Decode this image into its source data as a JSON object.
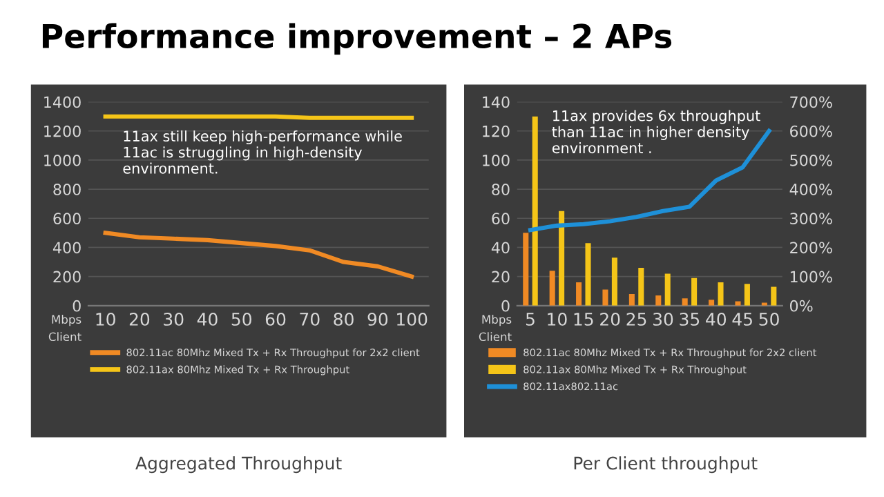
{
  "chart_data": [
    {
      "type": "line",
      "title": "Performance improvement – 2 APs",
      "xlabel": "Client",
      "ylabel": "Mbps",
      "categories": [
        "10",
        "20",
        "30",
        "40",
        "50",
        "60",
        "70",
        "80",
        "90",
        "100"
      ],
      "series": [
        {
          "name": "802.11ac 80Mhz Mixed Tx + Rx Throughput for 2x2 client",
          "color": "#f08a24",
          "values": [
            500,
            470,
            460,
            450,
            430,
            410,
            380,
            300,
            270,
            200
          ]
        },
        {
          "name": "802.11ax 80Mhz Mixed Tx + Rx Throughput",
          "color": "#f5c518",
          "values": [
            1300,
            1300,
            1300,
            1300,
            1300,
            1300,
            1290,
            1290,
            1290,
            1290
          ]
        }
      ],
      "ylim": [
        0,
        1400
      ],
      "yticks": [
        0,
        200,
        400,
        600,
        800,
        1000,
        1200,
        1400
      ],
      "grid": "y",
      "legend": "bottom",
      "annotations": [
        "11ax still keep high-performance while 11ac is struggling in high-density environment.",
        "Aggregated Throughput"
      ]
    },
    {
      "type": "bar",
      "xlabel": "Client",
      "ylabel": "Mbps",
      "categories": [
        "5",
        "10",
        "15",
        "20",
        "25",
        "30",
        "35",
        "40",
        "45",
        "50"
      ],
      "series": [
        {
          "name": "802.11ac 80Mhz Mixed Tx + Rx Throughput for 2x2 client",
          "color": "#f08a24",
          "values": [
            50,
            24,
            16,
            11,
            8,
            7,
            5,
            4,
            3,
            2
          ]
        },
        {
          "name": "802.11ax 80Mhz Mixed Tx + Rx Throughput",
          "color": "#f5c518",
          "values": [
            130,
            65,
            43,
            33,
            26,
            22,
            19,
            16,
            15,
            13
          ]
        },
        {
          "name": "802.11ax802.11ac",
          "type": "line",
          "axis": "y2",
          "color": "#1e90d8",
          "values": [
            260,
            275,
            280,
            290,
            305,
            325,
            340,
            430,
            475,
            600
          ]
        }
      ],
      "ylim": [
        0,
        140
      ],
      "yticks": [
        0,
        20,
        40,
        60,
        80,
        100,
        120,
        140
      ],
      "y2lim": [
        0,
        700
      ],
      "y2ticks": [
        {
          "value": 0,
          "label": "0%"
        },
        {
          "value": 100,
          "label": "100%"
        },
        {
          "value": 200,
          "label": "200%"
        },
        {
          "value": 300,
          "label": "300%"
        },
        {
          "value": 400,
          "label": "400%"
        },
        {
          "value": 500,
          "label": "500%"
        },
        {
          "value": 600,
          "label": "600%"
        },
        {
          "value": 700,
          "label": "700%"
        }
      ],
      "grid": "y",
      "legend": "bottom",
      "annotations": [
        "11ax provides 6x throughput than 11ac in higher density environment .",
        "Per Client throughput"
      ]
    }
  ]
}
